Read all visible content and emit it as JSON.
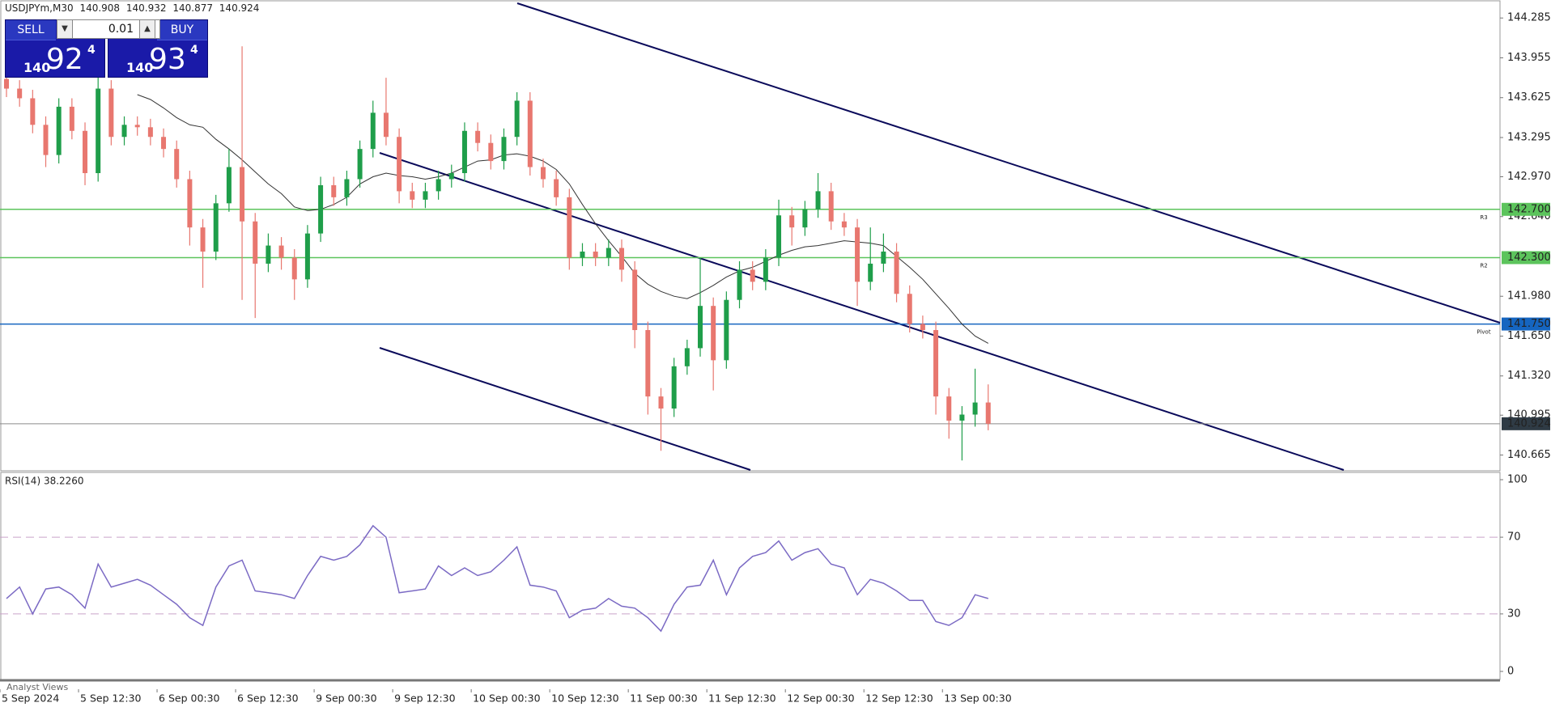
{
  "header": {
    "symbol": "USDJPYm,M30",
    "ohlc": [
      140.908,
      140.932,
      140.877,
      140.924
    ]
  },
  "trade_panel": {
    "sell_label": "SELL",
    "buy_label": "BUY",
    "volume": "0.01",
    "bid": {
      "prefix": "140",
      "main": "92",
      "suffix": "4"
    },
    "ask": {
      "prefix": "140",
      "main": "93",
      "suffix": "4"
    }
  },
  "footer_tab": "Analyst Views",
  "chart_data": [
    {
      "type": "candlestick",
      "categories": [
        "5 Sep 2024",
        null,
        null,
        null,
        null,
        null,
        "5 Sep 12:30",
        null,
        null,
        null,
        null,
        null,
        "6 Sep 00:30",
        null,
        null,
        null,
        null,
        null,
        "6 Sep 12:30",
        null,
        null,
        null,
        null,
        null,
        "9 Sep 00:30",
        null,
        null,
        null,
        null,
        null,
        "9 Sep 12:30",
        null,
        null,
        null,
        null,
        null,
        "10 Sep 00:30",
        null,
        null,
        null,
        null,
        null,
        "10 Sep 12:30",
        null,
        null,
        null,
        null,
        null,
        "11 Sep 00:30",
        null,
        null,
        null,
        null,
        null,
        "11 Sep 12:30",
        null,
        null,
        null,
        null,
        null,
        "12 Sep 00:30",
        null,
        null,
        null,
        null,
        null,
        "12 Sep 12:30",
        null,
        null,
        null,
        null,
        null,
        "13 Sep 00:30",
        null,
        null,
        null
      ],
      "open": [
        143.78,
        143.7,
        143.62,
        143.4,
        143.15,
        143.55,
        143.35,
        143.0,
        143.7,
        143.3,
        143.4,
        143.38,
        143.3,
        143.2,
        142.95,
        142.55,
        142.35,
        142.75,
        143.05,
        142.6,
        142.25,
        142.4,
        142.3,
        142.12,
        142.5,
        142.9,
        142.8,
        142.95,
        143.2,
        143.5,
        143.3,
        142.85,
        142.78,
        142.85,
        142.95,
        143.0,
        143.35,
        143.25,
        143.1,
        143.3,
        143.6,
        143.05,
        142.95,
        142.8,
        142.3,
        142.35,
        142.3,
        142.38,
        142.2,
        141.7,
        141.15,
        141.05,
        141.4,
        141.55,
        141.9,
        141.45,
        141.95,
        142.2,
        142.1,
        142.3,
        142.65,
        142.55,
        142.7,
        142.85,
        142.6,
        142.55,
        142.1,
        142.25,
        142.35,
        142.0,
        141.75,
        141.7,
        141.15,
        140.95,
        141.0,
        141.1
      ],
      "high": [
        143.85,
        143.77,
        143.69,
        143.47,
        143.62,
        143.62,
        143.42,
        143.8,
        143.77,
        143.47,
        143.47,
        143.45,
        143.37,
        143.27,
        143.02,
        142.62,
        142.82,
        143.2,
        144.05,
        142.67,
        142.5,
        142.47,
        142.37,
        142.57,
        142.97,
        142.97,
        143.02,
        143.27,
        143.6,
        143.79,
        143.37,
        142.92,
        142.92,
        143.02,
        143.07,
        143.42,
        143.42,
        143.32,
        143.37,
        143.67,
        143.67,
        143.12,
        143.02,
        142.87,
        142.42,
        142.42,
        142.45,
        142.45,
        142.27,
        141.77,
        141.22,
        141.47,
        141.62,
        142.3,
        141.97,
        142.02,
        142.27,
        142.27,
        142.37,
        142.78,
        142.72,
        142.77,
        143.0,
        142.92,
        142.67,
        142.62,
        142.55,
        142.5,
        142.42,
        142.07,
        141.82,
        141.77,
        141.22,
        141.07,
        141.38,
        141.25
      ],
      "low": [
        143.63,
        143.55,
        143.33,
        143.05,
        143.08,
        143.28,
        142.9,
        142.93,
        143.23,
        143.23,
        143.31,
        143.23,
        143.13,
        142.88,
        142.4,
        142.05,
        142.28,
        142.68,
        141.95,
        141.8,
        142.18,
        142.2,
        141.95,
        142.05,
        142.43,
        142.73,
        142.73,
        142.88,
        143.13,
        143.23,
        142.75,
        142.71,
        142.71,
        142.78,
        142.88,
        142.93,
        143.18,
        143.03,
        143.03,
        143.23,
        142.98,
        142.88,
        142.73,
        142.2,
        142.23,
        142.23,
        142.23,
        142.1,
        141.55,
        141.0,
        140.7,
        140.98,
        141.33,
        141.48,
        141.2,
        141.38,
        141.88,
        142.03,
        142.03,
        142.23,
        142.4,
        142.48,
        142.63,
        142.53,
        142.48,
        141.9,
        142.03,
        142.18,
        141.93,
        141.68,
        141.63,
        141.0,
        140.8,
        140.62,
        140.9,
        140.87
      ],
      "close": [
        143.7,
        143.62,
        143.4,
        143.15,
        143.55,
        143.35,
        143.0,
        143.7,
        143.3,
        143.4,
        143.38,
        143.3,
        143.2,
        142.95,
        142.55,
        142.35,
        142.75,
        143.05,
        142.6,
        142.25,
        142.4,
        142.3,
        142.12,
        142.5,
        142.9,
        142.8,
        142.95,
        143.2,
        143.5,
        143.3,
        142.85,
        142.78,
        142.85,
        142.95,
        143.0,
        143.35,
        143.25,
        143.1,
        143.3,
        143.6,
        143.05,
        142.95,
        142.8,
        142.3,
        142.35,
        142.3,
        142.38,
        142.2,
        141.7,
        141.15,
        141.05,
        141.4,
        141.55,
        141.9,
        141.45,
        141.95,
        142.2,
        142.1,
        142.3,
        142.65,
        142.55,
        142.7,
        142.85,
        142.6,
        142.55,
        142.1,
        142.25,
        142.35,
        142.0,
        141.75,
        141.7,
        141.15,
        140.95,
        141.0,
        141.1,
        140.924
      ],
      "up_color": "#1f9e4a",
      "down_color": "#e8776f",
      "moving_average": {
        "color": "#333333",
        "values": [
          null,
          null,
          null,
          null,
          null,
          null,
          null,
          null,
          null,
          null,
          143.65,
          143.61,
          143.54,
          143.46,
          143.4,
          143.38,
          143.28,
          143.2,
          143.11,
          143.01,
          142.91,
          142.83,
          142.72,
          142.69,
          142.7,
          142.74,
          142.8,
          142.91,
          142.97,
          143.0,
          142.98,
          142.97,
          142.95,
          142.97,
          143.0,
          143.05,
          143.1,
          143.11,
          143.15,
          143.16,
          143.14,
          143.1,
          143.03,
          142.91,
          142.74,
          142.58,
          142.44,
          142.31,
          142.17,
          142.08,
          142.02,
          141.98,
          141.96,
          142.01,
          142.07,
          142.14,
          142.19,
          142.22,
          142.27,
          142.32,
          142.36,
          142.39,
          142.4,
          142.42,
          142.44,
          142.43,
          142.42,
          142.4,
          142.31,
          142.22,
          142.12,
          142.0,
          141.88,
          141.75,
          141.65,
          141.59
        ]
      },
      "levels": [
        {
          "name": "R3",
          "value": 142.7,
          "label": "142.700",
          "color": "#5cc45c"
        },
        {
          "name": "R2",
          "value": 142.3,
          "label": "142.300",
          "color": "#5cc45c"
        },
        {
          "name": "Pivot",
          "value": 141.75,
          "label": "141.750",
          "color": "#1565c0"
        }
      ],
      "last_price": 140.924,
      "last_price_color": "#2f3b45",
      "ylim": [
        140.541,
        144.434
      ],
      "yticks": [
        {
          "value": 140.665,
          "label": "140.665"
        },
        140.995,
        {
          "value": 141.32,
          "label": "141.320"
        },
        {
          "value": 141.65,
          "label": "141.650"
        },
        {
          "value": 141.98,
          "label": "141.980"
        },
        {
          "value": 142.64,
          "label": "142.640"
        },
        {
          "value": 142.97,
          "label": "142.970"
        },
        143.295,
        143.625,
        143.955,
        144.285
      ]
    },
    {
      "type": "line",
      "title": "RSI(14) 38.2260",
      "color": "#7b6ac4",
      "values": [
        38,
        44,
        30,
        43,
        44,
        40,
        33,
        56,
        44,
        46,
        48,
        45,
        40,
        35,
        28,
        24,
        44,
        55,
        58,
        42,
        41,
        40,
        38,
        50,
        60,
        58,
        60,
        66,
        76,
        70,
        41,
        42,
        43,
        55,
        50,
        54,
        50,
        52,
        58,
        65,
        45,
        44,
        42,
        28,
        32,
        33,
        38,
        34,
        33,
        28,
        21,
        35,
        44,
        45,
        58,
        40,
        54,
        60,
        62,
        68,
        58,
        62,
        64,
        56,
        54,
        40,
        48,
        46,
        42,
        37,
        37,
        26,
        24,
        28,
        40,
        38
      ],
      "ylim": [
        0,
        100
      ],
      "yticks": [
        0,
        30,
        70,
        100
      ],
      "levels": [
        30,
        70
      ],
      "level_color": "#c9a3c9"
    }
  ]
}
